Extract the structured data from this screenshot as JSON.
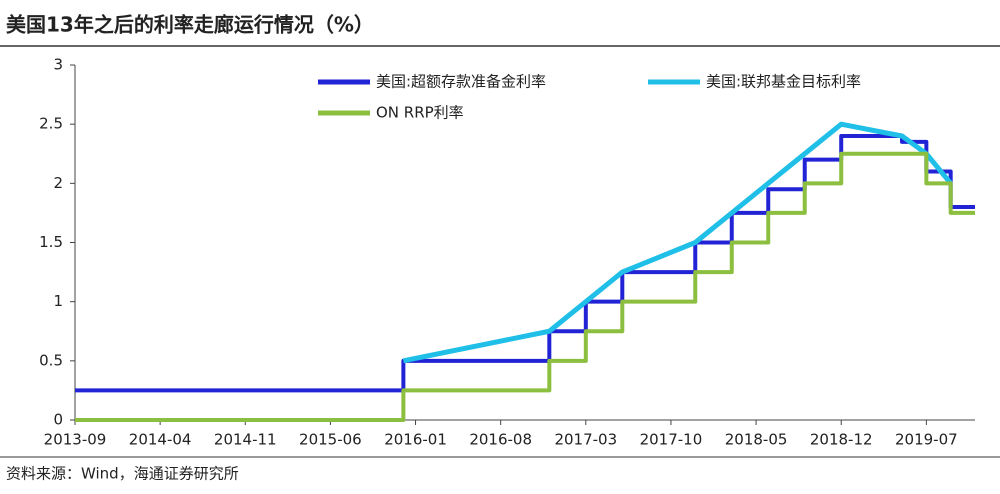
{
  "chart_data": {
    "type": "line",
    "title": "美国13年之后的利率走廊运行情况（%）",
    "source": "资料来源：Wind，海通证券研究所",
    "xlim": [
      "2013-09",
      "2019-11"
    ],
    "xticks": [
      "2013-09",
      "2014-04",
      "2014-11",
      "2015-06",
      "2016-01",
      "2016-08",
      "2017-03",
      "2017-10",
      "2018-05",
      "2018-12",
      "2019-07"
    ],
    "ylim": [
      0,
      3
    ],
    "yticks": [
      0,
      0.5,
      1,
      1.5,
      2,
      2.5,
      3
    ],
    "series": [
      {
        "name": "美国:超额存款准备金利率",
        "color": "#2323d6",
        "step": true,
        "x": [
          "2013-09",
          "2015-12",
          "2016-12",
          "2017-03",
          "2017-06",
          "2017-12",
          "2018-03",
          "2018-06",
          "2018-09",
          "2018-12",
          "2019-05",
          "2019-07",
          "2019-09",
          "2019-11"
        ],
        "values": [
          0.25,
          0.5,
          0.75,
          1.0,
          1.25,
          1.5,
          1.75,
          1.95,
          2.2,
          2.4,
          2.35,
          2.1,
          1.8,
          1.8
        ]
      },
      {
        "name": "美国:联邦基金目标利率",
        "color": "#1fbfe8",
        "step": false,
        "x": [
          "2015-12",
          "2016-12",
          "2017-03",
          "2017-06",
          "2017-12",
          "2018-03",
          "2018-06",
          "2018-09",
          "2018-12",
          "2019-05",
          "2019-07",
          "2019-09"
        ],
        "values": [
          0.5,
          0.75,
          1.0,
          1.25,
          1.5,
          1.75,
          2.0,
          2.25,
          2.5,
          2.4,
          2.25,
          2.0
        ]
      },
      {
        "name": "ON RRP利率",
        "color": "#8cbf3f",
        "step": true,
        "x": [
          "2013-09",
          "2015-12",
          "2016-12",
          "2017-03",
          "2017-06",
          "2017-12",
          "2018-03",
          "2018-06",
          "2018-09",
          "2018-12",
          "2019-07",
          "2019-09",
          "2019-11"
        ],
        "values": [
          0,
          0.25,
          0.5,
          0.75,
          1.0,
          1.25,
          1.5,
          1.75,
          2.0,
          2.25,
          2.0,
          1.75,
          1.75
        ]
      }
    ]
  }
}
